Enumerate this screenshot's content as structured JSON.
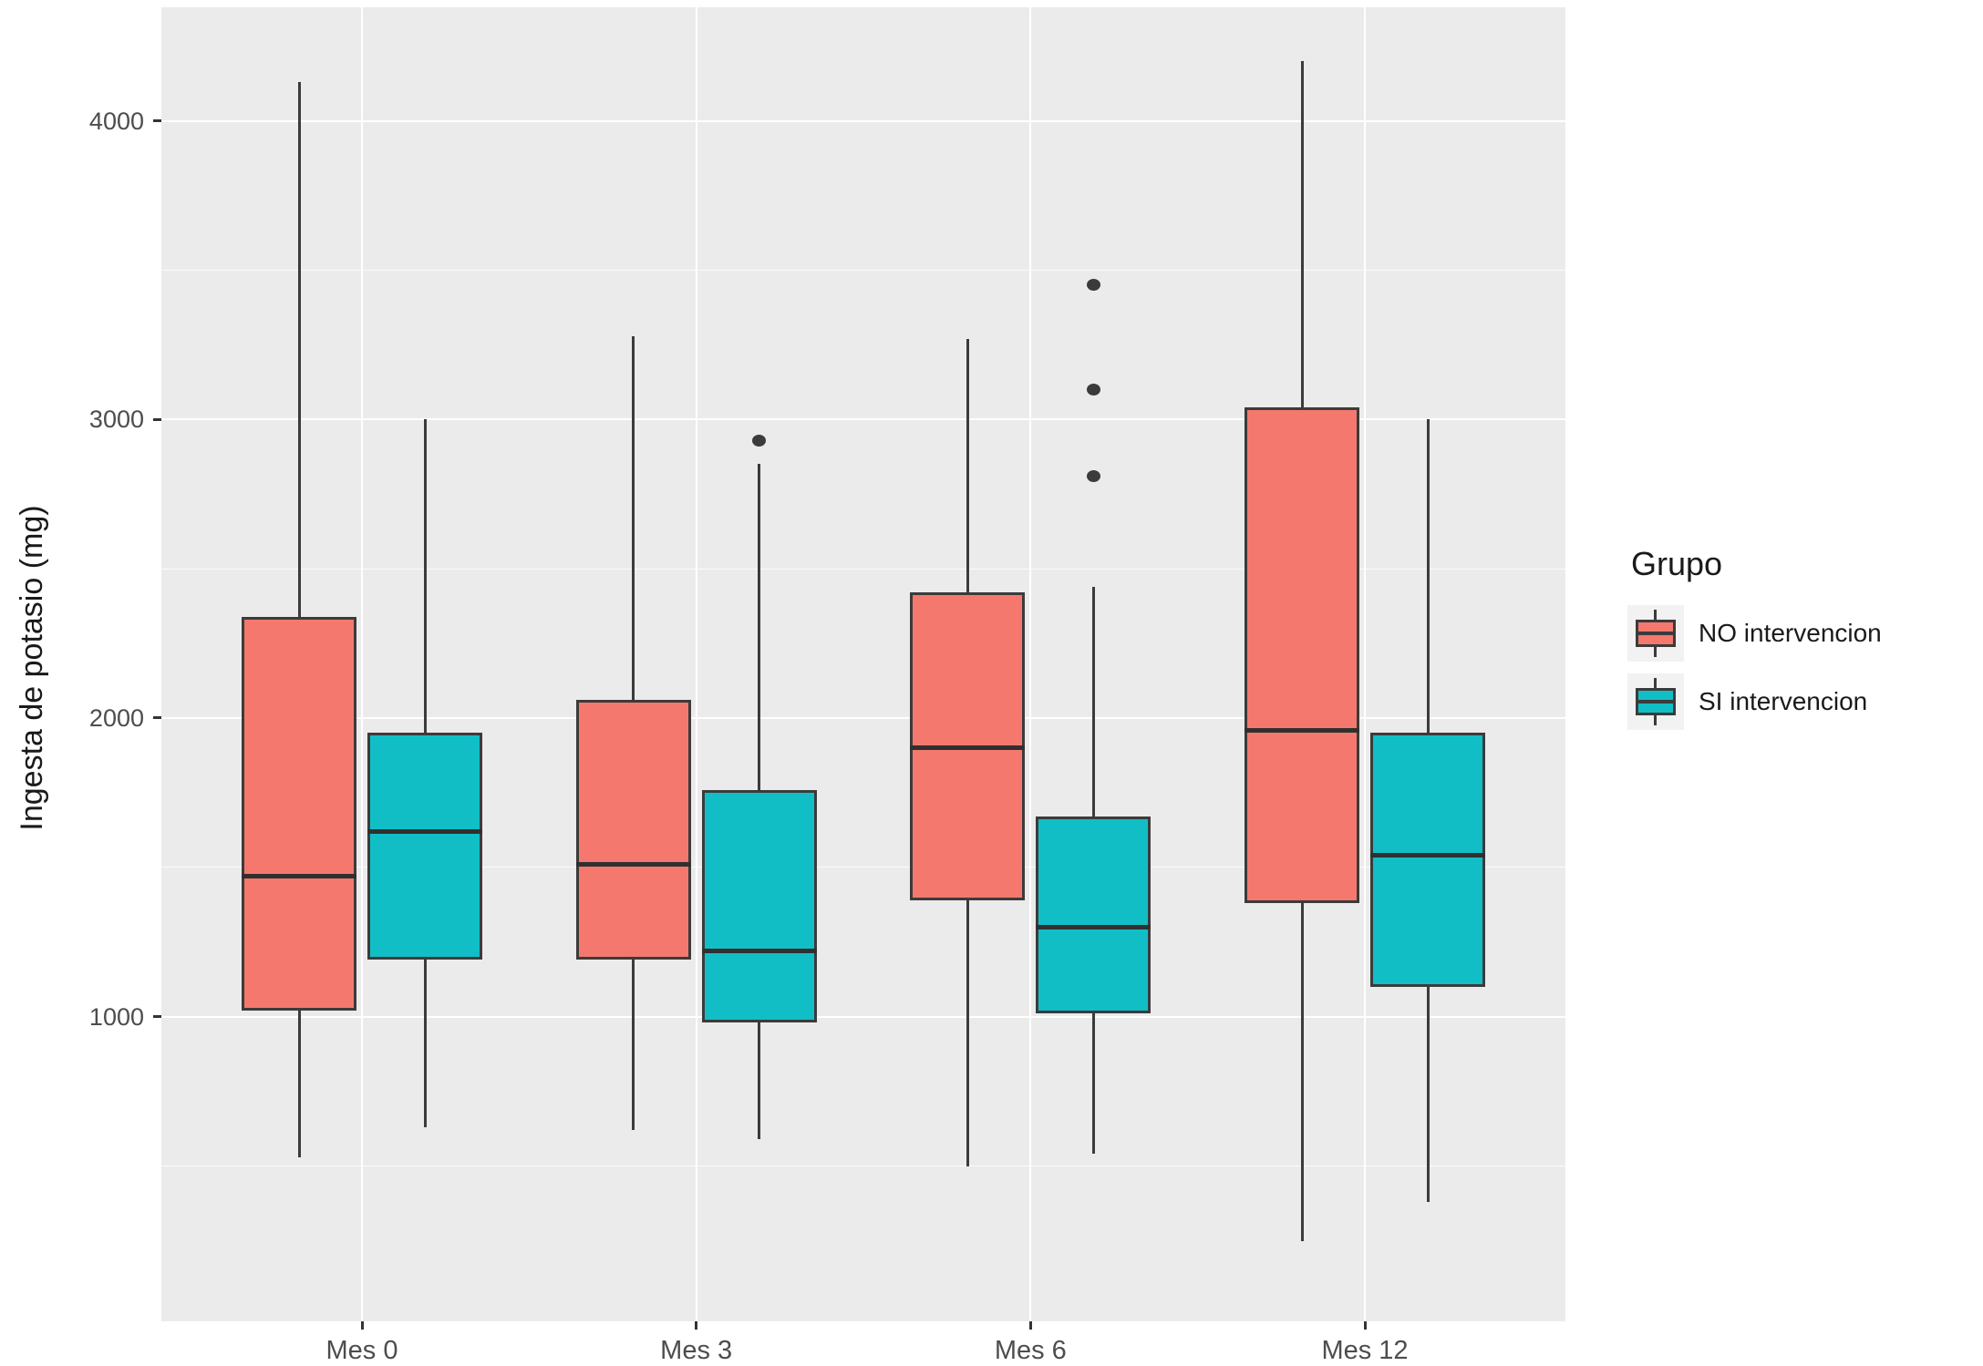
{
  "chart_data": {
    "type": "boxplot",
    "title": "",
    "xlabel": "",
    "ylabel": "Ingesta de potasio (mg)",
    "categories": [
      "Mes 0",
      "Mes 3",
      "Mes 6",
      "Mes 12"
    ],
    "y_ticks": [
      1000,
      2000,
      3000,
      4000
    ],
    "y_minor_ticks": [
      500,
      1500,
      2500,
      3500
    ],
    "ylim": [
      -20,
      4380
    ],
    "grid": "white major+minor horizontal lines and major vertical lines on grey panel",
    "legend": {
      "title": "Grupo",
      "position": "right",
      "items": [
        {
          "label": "NO intervencion",
          "color": "#F4786D"
        },
        {
          "label": "SI intervencion",
          "color": "#12BEC6"
        }
      ]
    },
    "series": [
      {
        "name": "NO intervencion",
        "color": "#F4786D",
        "boxes": [
          {
            "category": "Mes 0",
            "whisker_low": 530,
            "q1": 1020,
            "median": 1470,
            "q3": 2340,
            "whisker_high": 4130,
            "outliers": []
          },
          {
            "category": "Mes 3",
            "whisker_low": 620,
            "q1": 1190,
            "median": 1510,
            "q3": 2060,
            "whisker_high": 3280,
            "outliers": []
          },
          {
            "category": "Mes 6",
            "whisker_low": 500,
            "q1": 1390,
            "median": 1900,
            "q3": 2420,
            "whisker_high": 3270,
            "outliers": []
          },
          {
            "category": "Mes 12",
            "whisker_low": 250,
            "q1": 1380,
            "median": 1960,
            "q3": 3040,
            "whisker_high": 4200,
            "outliers": []
          }
        ]
      },
      {
        "name": "SI intervencion",
        "color": "#12BEC6",
        "boxes": [
          {
            "category": "Mes 0",
            "whisker_low": 630,
            "q1": 1190,
            "median": 1620,
            "q3": 1950,
            "whisker_high": 3000,
            "outliers": []
          },
          {
            "category": "Mes 3",
            "whisker_low": 590,
            "q1": 980,
            "median": 1220,
            "q3": 1760,
            "whisker_high": 2850,
            "outliers": [
              2930
            ]
          },
          {
            "category": "Mes 6",
            "whisker_low": 540,
            "q1": 1010,
            "median": 1300,
            "q3": 1670,
            "whisker_high": 2440,
            "outliers": [
              2810,
              3100,
              3450
            ]
          },
          {
            "category": "Mes 12",
            "whisker_low": 380,
            "q1": 1100,
            "median": 1540,
            "q3": 1950,
            "whisker_high": 3000,
            "outliers": []
          }
        ]
      }
    ],
    "style": {
      "panel_bg": "#EBEBEB",
      "grid_color": "#FFFFFF",
      "box_border": "#3B3B3B",
      "median_color": "#303030",
      "outlier_color": "#3B3B3B",
      "tick_label_color": "#4D4D4D",
      "axis_title_color": "#1A1A1A"
    }
  }
}
